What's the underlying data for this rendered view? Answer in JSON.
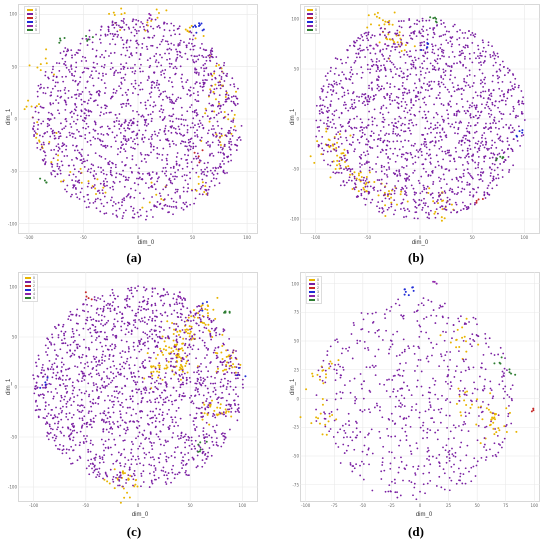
{
  "chart_data": [
    {
      "type": "scatter",
      "caption": "(a)",
      "xlabel": "dim_0",
      "ylabel": "dim_1",
      "x_ticks": [
        "-100",
        "-50",
        "0",
        "50",
        "100"
      ],
      "y_ticks": [
        "100",
        "50",
        "0",
        "-50",
        "-100"
      ],
      "xlim": [
        -110,
        110
      ],
      "ylim": [
        -110,
        110
      ],
      "grid": true,
      "legend": {
        "placement": "top-left",
        "entries": [
          "0",
          "1",
          "2",
          "3",
          "4",
          "5"
        ]
      },
      "series": [
        {
          "label": "0",
          "color": "#e8b400",
          "count": 120,
          "points": [
            [
              -20,
              95
            ],
            [
              20,
              95
            ],
            [
              50,
              80
            ],
            [
              70,
              50
            ],
            [
              75,
              30
            ],
            [
              -85,
              55
            ],
            [
              -90,
              10
            ],
            [
              -85,
              -20
            ],
            [
              -65,
              -50
            ],
            [
              -40,
              -65
            ],
            [
              15,
              -75
            ],
            [
              55,
              -65
            ],
            [
              70,
              -20
            ],
            [
              70,
              15
            ],
            [
              80,
              -5
            ]
          ]
        },
        {
          "label": "1",
          "color": "#7a1fa2",
          "count": 1600,
          "points": [
            [
              0,
              0
            ]
          ]
        },
        {
          "label": "2",
          "color": "#c62828",
          "count": 4,
          "points": [
            [
              55,
              -35
            ]
          ]
        },
        {
          "label": "3",
          "color": "#1f2bd6",
          "count": 10,
          "points": [
            [
              55,
              88
            ]
          ]
        },
        {
          "label": "4",
          "color": "#8e24aa",
          "count": 4,
          "points": [
            [
              10,
              98
            ]
          ]
        },
        {
          "label": "5",
          "color": "#2e7d32",
          "count": 12,
          "points": [
            [
              -70,
              75
            ],
            [
              -45,
              80
            ],
            [
              -85,
              -60
            ]
          ]
        }
      ]
    },
    {
      "type": "scatter",
      "caption": "(b)",
      "xlabel": "dim_0",
      "ylabel": "dim_1",
      "x_ticks": [
        "-100",
        "-50",
        "0",
        "50",
        "100"
      ],
      "y_ticks": [
        "100",
        "50",
        "0",
        "-50",
        "-100"
      ],
      "xlim": [
        -115,
        115
      ],
      "ylim": [
        -115,
        115
      ],
      "grid": true,
      "legend": {
        "placement": "top-left",
        "entries": [
          "0",
          "1",
          "2",
          "3",
          "4",
          "5"
        ]
      },
      "series": [
        {
          "label": "0",
          "color": "#e8b400",
          "count": 140,
          "points": [
            [
              -85,
              -25
            ],
            [
              -75,
              -45
            ],
            [
              -55,
              -65
            ],
            [
              -30,
              -75
            ],
            [
              20,
              -85
            ],
            [
              -35,
              95
            ],
            [
              -20,
              80
            ]
          ]
        },
        {
          "label": "1",
          "color": "#7a1fa2",
          "count": 1700,
          "points": [
            [
              0,
              0
            ]
          ]
        },
        {
          "label": "2",
          "color": "#c62828",
          "count": 4,
          "points": [
            [
              55,
              -80
            ]
          ]
        },
        {
          "label": "3",
          "color": "#1f2bd6",
          "count": 10,
          "points": [
            [
              95,
              -15
            ],
            [
              5,
              75
            ]
          ]
        },
        {
          "label": "4",
          "color": "#8e24aa",
          "count": 4,
          "points": [
            [
              -40,
              75
            ]
          ]
        },
        {
          "label": "5",
          "color": "#2e7d32",
          "count": 12,
          "points": [
            [
              15,
              100
            ],
            [
              75,
              -40
            ]
          ]
        }
      ]
    },
    {
      "type": "scatter",
      "caption": "(c)",
      "xlabel": "dim_0",
      "ylabel": "dim_1",
      "x_ticks": [
        "-100",
        "-50",
        "0",
        "50",
        "100"
      ],
      "y_ticks": [
        "100",
        "50",
        "0",
        "-50",
        "-100"
      ],
      "xlim": [
        -115,
        115
      ],
      "ylim": [
        -115,
        115
      ],
      "grid": true,
      "legend": {
        "placement": "top-left",
        "entries": [
          "0",
          "1",
          "2",
          "3",
          "4",
          "5"
        ]
      },
      "series": [
        {
          "label": "0",
          "color": "#e8b400",
          "count": 220,
          "points": [
            [
              30,
              40
            ],
            [
              20,
              20
            ],
            [
              40,
              25
            ],
            [
              45,
              55
            ],
            [
              65,
              70
            ],
            [
              85,
              25
            ],
            [
              75,
              -25
            ],
            [
              -15,
              -95
            ]
          ]
        },
        {
          "label": "1",
          "color": "#7a1fa2",
          "count": 1700,
          "points": [
            [
              0,
              0
            ]
          ]
        },
        {
          "label": "2",
          "color": "#c62828",
          "count": 4,
          "points": [
            [
              -50,
              90
            ]
          ]
        },
        {
          "label": "3",
          "color": "#1f2bd6",
          "count": 10,
          "points": [
            [
              -90,
              5
            ],
            [
              95,
              15
            ],
            [
              65,
              80
            ]
          ]
        },
        {
          "label": "4",
          "color": "#8e24aa",
          "count": 4,
          "points": [
            [
              40,
              90
            ]
          ]
        },
        {
          "label": "5",
          "color": "#2e7d32",
          "count": 12,
          "points": [
            [
              85,
              75
            ],
            [
              60,
              -60
            ]
          ]
        }
      ]
    },
    {
      "type": "scatter",
      "caption": "(d)",
      "xlabel": "dim_0",
      "ylabel": "dim_1",
      "x_ticks": [
        "-100",
        "-75",
        "-50",
        "-25",
        "0",
        "25",
        "50",
        "75",
        "100"
      ],
      "y_ticks": [
        "100",
        "75",
        "50",
        "25",
        "0",
        "-25",
        "-50",
        "-75"
      ],
      "xlim": [
        -105,
        105
      ],
      "ylim": [
        -90,
        110
      ],
      "grid": true,
      "legend": {
        "placement": "top-left",
        "entries": [
          "0",
          "1",
          "2",
          "3",
          "4",
          "5"
        ]
      },
      "series": [
        {
          "label": "0",
          "color": "#e8b400",
          "count": 90,
          "points": [
            [
              60,
              -15
            ],
            [
              45,
              -5
            ],
            [
              70,
              -25
            ],
            [
              -85,
              20
            ],
            [
              -85,
              -15
            ],
            [
              35,
              50
            ]
          ]
        },
        {
          "label": "1",
          "color": "#7a1fa2",
          "count": 650,
          "points": [
            [
              -5,
              0
            ]
          ]
        },
        {
          "label": "2",
          "color": "#c62828",
          "count": 3,
          "points": [
            [
              98,
              -10
            ]
          ]
        },
        {
          "label": "3",
          "color": "#1f2bd6",
          "count": 8,
          "points": [
            [
              -10,
              92
            ]
          ]
        },
        {
          "label": "4",
          "color": "#8e24aa",
          "count": 3,
          "points": [
            [
              10,
              100
            ]
          ]
        },
        {
          "label": "5",
          "color": "#2e7d32",
          "count": 8,
          "points": [
            [
              70,
              35
            ],
            [
              80,
              25
            ]
          ]
        }
      ]
    }
  ]
}
